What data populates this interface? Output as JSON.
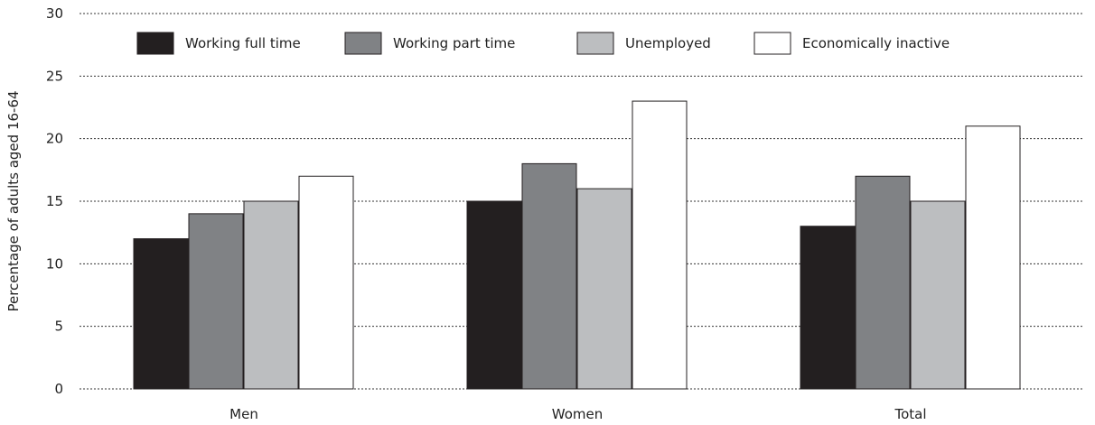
{
  "chart_data": {
    "type": "bar",
    "title": "",
    "xlabel": "",
    "ylabel": "Percentage of adults aged 16-64",
    "ylim": [
      0,
      30
    ],
    "yticks": [
      0,
      5,
      10,
      15,
      20,
      25,
      30
    ],
    "grid": true,
    "legend_position": "top",
    "categories": [
      "Men",
      "Women",
      "Total"
    ],
    "series": [
      {
        "name": "Working full time",
        "color": "#231f20",
        "values": [
          12,
          15,
          13
        ]
      },
      {
        "name": "Working part time",
        "color": "#808285",
        "values": [
          14,
          18,
          17
        ]
      },
      {
        "name": "Unemployed",
        "color": "#bcbec0",
        "values": [
          15,
          16,
          15
        ]
      },
      {
        "name": "Economically inactive",
        "color": "#ffffff",
        "values": [
          17,
          23,
          21
        ]
      }
    ]
  }
}
